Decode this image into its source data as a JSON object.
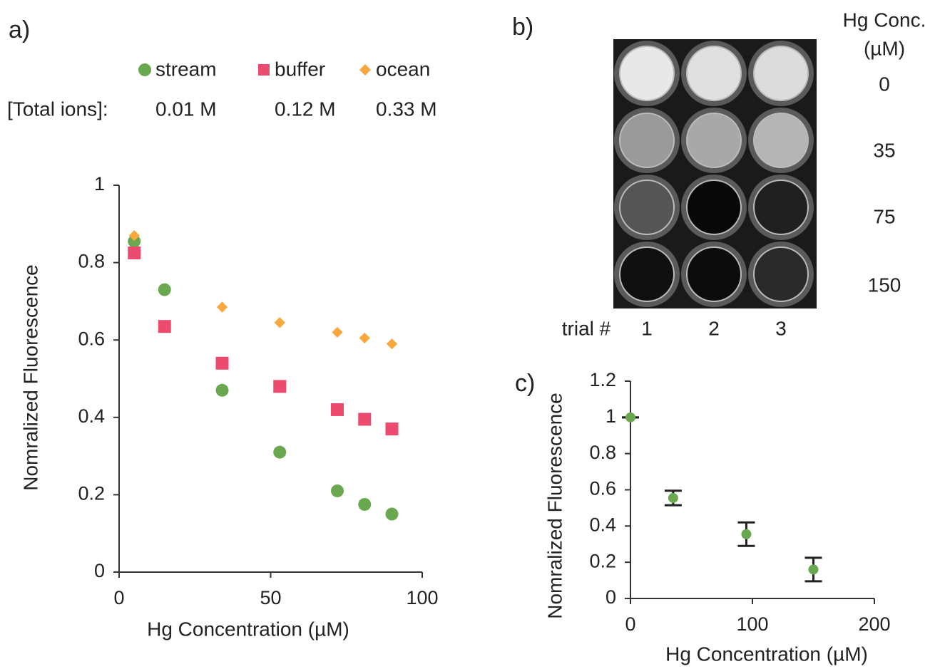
{
  "chart_data": [
    {
      "type": "scatter",
      "panel": "a)",
      "x_label": "Hg Concentration (µM)",
      "y_label": "Nomralized Fluorescence",
      "x": [
        5,
        15,
        34,
        53,
        72,
        81,
        90
      ],
      "series": [
        {
          "name": "stream",
          "color": "#6aa84f",
          "marker": "circle",
          "total_ions": "0.01 M",
          "values": [
            0.855,
            0.73,
            0.47,
            0.31,
            0.21,
            0.175,
            0.15
          ]
        },
        {
          "name": "buffer",
          "color": "#ec4a6e",
          "marker": "square",
          "total_ions": "0.12 M",
          "values": [
            0.825,
            0.635,
            0.54,
            0.48,
            0.42,
            0.395,
            0.37
          ]
        },
        {
          "name": "ocean",
          "color": "#f9a73e",
          "marker": "diamond",
          "total_ions": "0.33 M",
          "values": [
            0.87,
            null,
            0.685,
            0.645,
            0.62,
            0.605,
            0.59
          ]
        }
      ],
      "legend_note_label": "[Total ions]:",
      "xlim": [
        0,
        100
      ],
      "xticks": [
        0,
        50,
        100
      ],
      "ylim": [
        0,
        1
      ],
      "yticks": [
        0,
        0.2,
        0.4,
        0.6,
        0.8,
        1
      ],
      "grid": false
    },
    {
      "type": "scatter",
      "panel": "c)",
      "x_label": "Hg Concentration (µM)",
      "y_label": "Nomralized Fluorescence",
      "x": [
        0,
        35,
        95,
        150
      ],
      "series": [
        {
          "color": "#6aa84f",
          "marker": "circle",
          "values": [
            1.0,
            0.555,
            0.355,
            0.16
          ],
          "errors": [
            0,
            0.04,
            0.065,
            0.065
          ]
        }
      ],
      "xlim": [
        0,
        200
      ],
      "xticks": [
        0,
        100,
        200
      ],
      "ylim": [
        0,
        1.2
      ],
      "yticks": [
        0,
        0.2,
        0.4,
        0.6,
        0.8,
        1,
        1.2
      ],
      "grid": false
    }
  ],
  "photo_panel": {
    "panel": "b)",
    "header": [
      "Hg Conc.",
      "(µM)"
    ],
    "row_labels": [
      "0",
      "35",
      "75",
      "150"
    ],
    "column_title": "trial #",
    "column_labels": [
      "1",
      "2",
      "3"
    ]
  }
}
